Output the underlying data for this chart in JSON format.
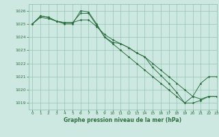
{
  "xlabel": "Graphe pression niveau de la mer (hPa)",
  "background_color": "#cce8e0",
  "grid_color": "#88bbaa",
  "line_color": "#2d6e40",
  "xlim": [
    -0.5,
    23
  ],
  "ylim": [
    1018.5,
    1026.5
  ],
  "yticks": [
    1019,
    1020,
    1021,
    1022,
    1023,
    1024,
    1025,
    1026
  ],
  "xticks": [
    0,
    1,
    2,
    3,
    4,
    5,
    6,
    7,
    8,
    9,
    10,
    11,
    12,
    13,
    14,
    15,
    16,
    17,
    18,
    19,
    20,
    21,
    22,
    23
  ],
  "series": [
    [
      1025.0,
      1025.6,
      1025.5,
      1025.2,
      1025.1,
      1025.1,
      1025.3,
      1025.3,
      1024.8,
      1024.2,
      1023.8,
      1023.5,
      1023.2,
      1022.8,
      1022.5,
      1022.0,
      1021.5,
      1021.0,
      1020.5,
      1020.0,
      1019.5,
      1019.3,
      1019.5,
      1019.5
    ],
    [
      1025.0,
      1025.6,
      1025.5,
      1025.2,
      1025.1,
      1025.1,
      1025.8,
      1025.8,
      1024.9,
      1024.0,
      1023.5,
      1023.0,
      1022.5,
      1022.0,
      1021.5,
      1021.0,
      1020.5,
      1020.0,
      1019.5,
      1019.0,
      1019.0,
      1019.2,
      1019.5,
      1019.5
    ],
    [
      1025.0,
      1025.5,
      1025.4,
      1025.2,
      1025.0,
      1025.0,
      1026.0,
      1025.9,
      1025.0,
      1024.0,
      1023.6,
      1023.5,
      1023.2,
      1022.8,
      1022.5,
      1021.7,
      1021.1,
      1020.5,
      1019.8,
      1019.0,
      1019.5,
      1020.5,
      1021.0,
      1021.0
    ]
  ]
}
